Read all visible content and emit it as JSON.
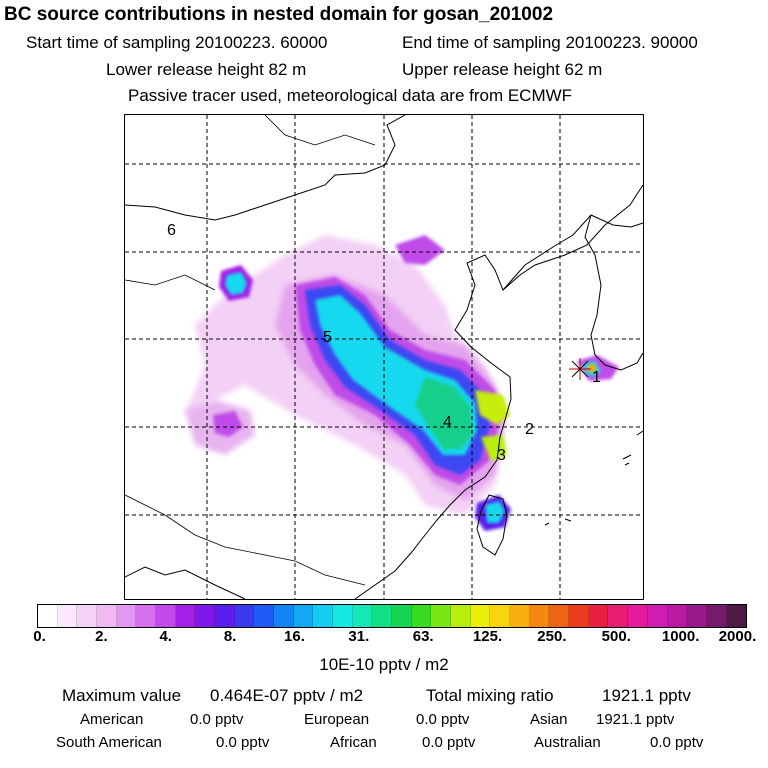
{
  "title": "BC  source contributions in nested domain for gosan_201002",
  "header": {
    "start_time": "Start time of sampling 20100223. 60000",
    "end_time": "End time of sampling 20100223. 90000",
    "lower_height": "Lower release height   82 m",
    "upper_height": "Upper release height   62 m",
    "tracer_note": "Passive tracer used, meteorological data are from ECMWF"
  },
  "map": {
    "region_labels": [
      "1",
      "2",
      "3",
      "4",
      "5",
      "6"
    ],
    "receptor_marker": "star-icon"
  },
  "colorbar": {
    "tick_labels": [
      "0.",
      "2.",
      "4.",
      "8.",
      "16.",
      "31.",
      "63.",
      "125.",
      "250.",
      "500.",
      "1000.",
      "2000."
    ],
    "units": "10E-10 pptv / m2",
    "colors": [
      "#ffffff",
      "#fbe9fb",
      "#f7d3f7",
      "#f0b9f3",
      "#e497f0",
      "#d470ee",
      "#c34ae9",
      "#a51fe6",
      "#7f17e8",
      "#5a1fee",
      "#3b3af2",
      "#1e5cf5",
      "#1384f5",
      "#12a8f4",
      "#12cdef",
      "#14e8e0",
      "#14e8b4",
      "#12de86",
      "#18d453",
      "#38dc1f",
      "#78e610",
      "#b9ee0c",
      "#eaf00c",
      "#f7d60d",
      "#f7ae0f",
      "#f48812",
      "#f06216",
      "#ec3a1c",
      "#e81f3d",
      "#e81c72",
      "#e41c9c",
      "#d01cb0",
      "#b81aa4",
      "#981a8a",
      "#741c6a",
      "#4e1b46"
    ]
  },
  "stats": {
    "max_value_label": "Maximum value",
    "max_value": "0.464E-07 pptv / m2",
    "total_label": "Total mixing ratio",
    "total_value": "1921.1 pptv",
    "american_label": "American",
    "american_value": "0.0 pptv",
    "european_label": "European",
    "european_value": "0.0 pptv",
    "asian_label": "Asian",
    "asian_value": "1921.1 pptv",
    "south_american_label": "South American",
    "south_american_value": "0.0 pptv",
    "african_label": "African",
    "african_value": "0.0 pptv",
    "australian_label": "Australian",
    "australian_value": "0.0 pptv"
  }
}
